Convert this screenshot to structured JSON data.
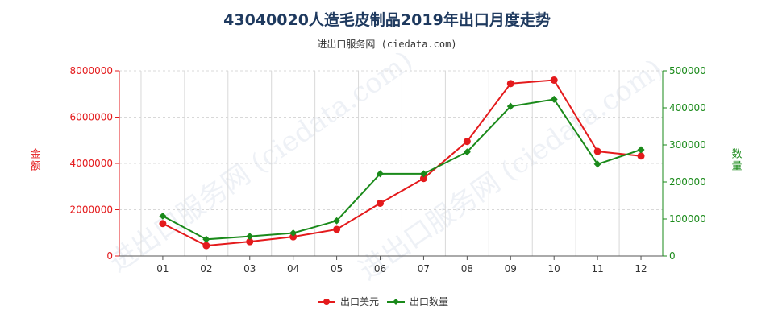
{
  "title": "43040020人造毛皮制品2019年出口月度走势",
  "subtitle": "进出口服务网 (ciedata.com)",
  "watermark": "进出口服务网 (ciedata.com)",
  "colors": {
    "export_value": "#e41a1c",
    "export_qty": "#1a8a1a",
    "grid": "#d8d8d8",
    "axis": "#555555",
    "title": "#1f3a5f"
  },
  "chart_data": {
    "type": "line",
    "categories": [
      "01",
      "02",
      "03",
      "04",
      "05",
      "06",
      "07",
      "08",
      "09",
      "10",
      "11",
      "12"
    ],
    "y_left": {
      "label": "金额",
      "ylim": [
        0,
        8000000
      ],
      "ticks": [
        "0",
        "2000000",
        "4000000",
        "6000000",
        "8000000"
      ],
      "tick_values": [
        0,
        2000000,
        4000000,
        6000000,
        8000000
      ]
    },
    "y_right": {
      "label": "数量",
      "ylim": [
        0,
        500000
      ],
      "ticks": [
        "0",
        "100000",
        "200000",
        "300000",
        "400000",
        "500000"
      ],
      "tick_values": [
        0,
        100000,
        200000,
        300000,
        400000,
        500000
      ]
    },
    "series": [
      {
        "name": "出口美元",
        "axis": "left",
        "marker": "circle",
        "values": [
          1400000,
          450000,
          620000,
          830000,
          1150000,
          2280000,
          3350000,
          4950000,
          7450000,
          7600000,
          4520000,
          4320000
        ]
      },
      {
        "name": "出口数量",
        "axis": "right",
        "marker": "diamond",
        "values": [
          108000,
          45000,
          53000,
          62000,
          95000,
          222000,
          222000,
          281000,
          404000,
          423000,
          248000,
          287000
        ]
      }
    ],
    "grid": true,
    "legend_position": "bottom"
  }
}
